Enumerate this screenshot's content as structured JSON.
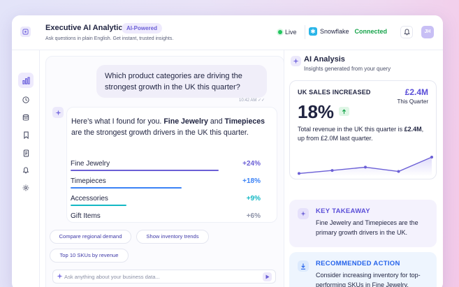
{
  "header": {
    "title": "Executive AI Analytics",
    "badge": "AI-Powered",
    "subtitle": "Ask questions in plain English. Get instant, trusted insights.",
    "live_label": "Live",
    "integration_name": "Snowflake",
    "integration_status": "Connected",
    "avatar_initials": "JH"
  },
  "sidebar": {
    "items": [
      {
        "icon": "bar-chart-icon",
        "active": true
      },
      {
        "icon": "clock-icon",
        "active": false
      },
      {
        "icon": "database-icon",
        "active": false
      },
      {
        "icon": "bookmark-icon",
        "active": false
      },
      {
        "icon": "document-icon",
        "active": false
      },
      {
        "icon": "bell-icon",
        "active": false
      },
      {
        "icon": "gear-icon",
        "active": false
      }
    ]
  },
  "chat": {
    "user_message": "Which product categories are driving the strongest growth in the UK this quarter?",
    "user_time": "10:42 AM",
    "ai_intro": "Here’s what I found for you.",
    "ai_highlight_1": "Fine Jewelry",
    "ai_and": "and",
    "ai_highlight_2": "Timepieces",
    "ai_rest": "are the strongest growth drivers in the UK this quarter.",
    "categories": [
      {
        "name": "Fine Jewelry",
        "change": "+24%",
        "value": 24,
        "color": "#6b5fd6"
      },
      {
        "name": "Timepieces",
        "change": "+18%",
        "value": 18,
        "color": "#3b82f6"
      },
      {
        "name": "Accessories",
        "change": "+9%",
        "value": 9,
        "color": "#14b8c4"
      },
      {
        "name": "Gift Items",
        "change": "+6%",
        "value": 6,
        "color": "#8e93a8"
      }
    ],
    "suggestions": [
      "Compare regional demand",
      "Show inventory trends",
      "Top 10 SKUs by revenue"
    ],
    "input_placeholder": "Ask anything about your business data..."
  },
  "analysis": {
    "title": "AI Analysis",
    "subtitle": "Insights generated from your query",
    "kpi": {
      "label": "UK SALES INCREASED",
      "amount": "£2.4M",
      "period": "This Quarter",
      "percent": "18%",
      "desc_prefix": "Total revenue in the UK this quarter is",
      "desc_amount": "£2.4M",
      "desc_suffix": ", up from £2.0M last quarter.",
      "trend": [
        0.1,
        0.22,
        0.35,
        0.18,
        0.75
      ]
    },
    "takeaway": {
      "title": "KEY TAKEAWAY",
      "text": "Fine Jewelry and Timepieces are the primary growth drivers in the UK."
    },
    "action": {
      "title": "RECOMMENDED ACTION",
      "text": "Consider increasing inventory for top-performing SKUs in Fine Jewelry."
    }
  },
  "colors": {
    "accent": "#6b5fd6",
    "positive": "#16a34a",
    "teal": "#14b8c4",
    "blue": "#3b82f6"
  }
}
